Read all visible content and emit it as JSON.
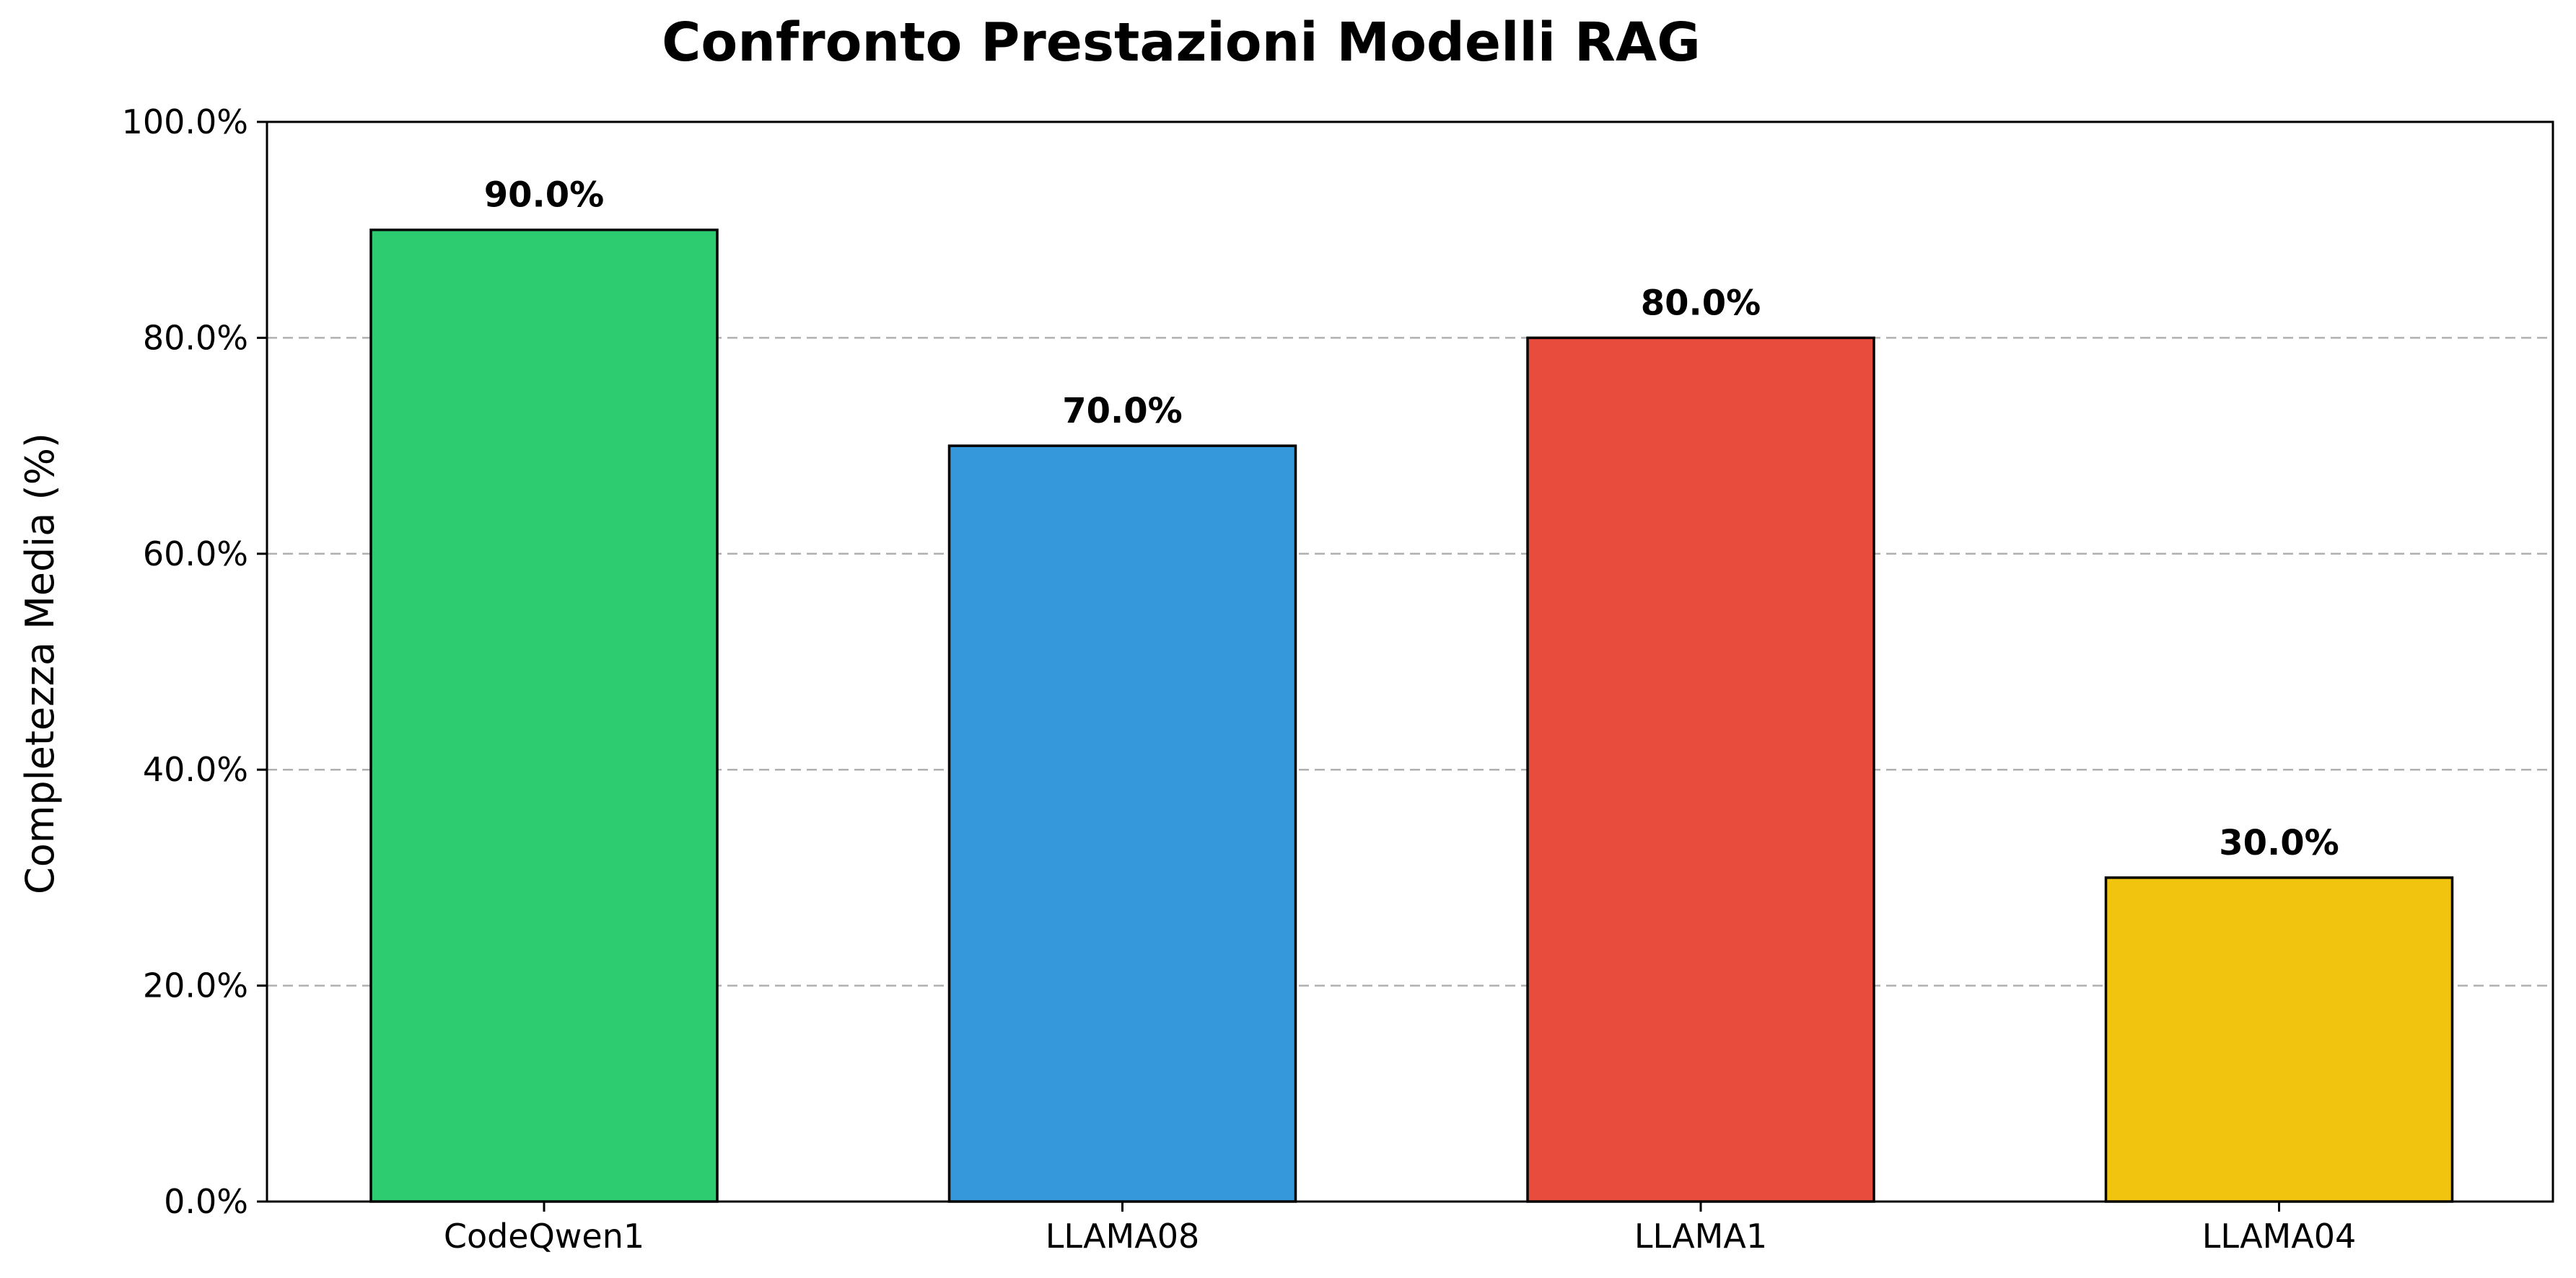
{
  "chart_data": {
    "type": "bar",
    "title": "Confronto Prestazioni Modelli RAG",
    "xlabel": "",
    "ylabel": "Completezza Media (%)",
    "categories": [
      "CodeQwen1",
      "LLAMA08",
      "LLAMA1",
      "LLAMA04"
    ],
    "values": [
      90.0,
      70.0,
      80.0,
      30.0
    ],
    "value_labels": [
      "90.0%",
      "70.0%",
      "80.0%",
      "30.0%"
    ],
    "colors": [
      "#2ecc71",
      "#3498db",
      "#e74c3c",
      "#f1c40f"
    ],
    "ylim": [
      0,
      100
    ],
    "yticks": [
      0,
      20,
      40,
      60,
      80,
      100
    ],
    "ytick_labels": [
      "0.0%",
      "20.0%",
      "40.0%",
      "60.0%",
      "80.0%",
      "100.0%"
    ],
    "grid": {
      "axis": "y",
      "style": "dashed",
      "color": "#b0b0b0"
    },
    "legend": null
  }
}
